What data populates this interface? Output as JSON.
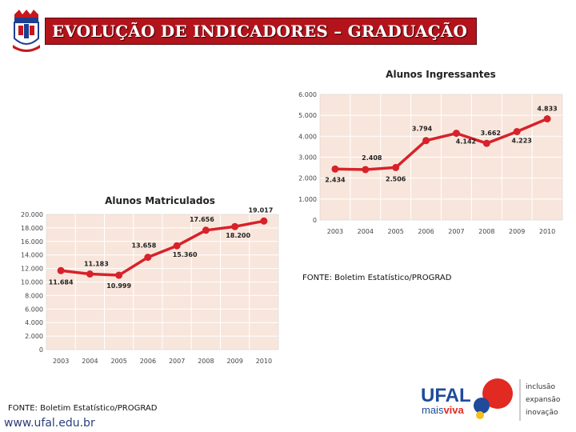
{
  "header": {
    "title": "EVOLUÇÃO DE INDICADORES – GRADUAÇÃO"
  },
  "chart_data": [
    {
      "type": "line",
      "title": "Alunos  Ingressantes",
      "categories": [
        "2003",
        "2004",
        "2005",
        "2006",
        "2007",
        "2008",
        "2009",
        "2010"
      ],
      "values": [
        2434,
        2408,
        2506,
        3794,
        4142,
        3662,
        4223,
        4833
      ],
      "data_labels": [
        "2.434",
        "2.408",
        "2.506",
        "3.794",
        "4.142",
        "3.662",
        "4.223",
        "4.833"
      ],
      "y_ticks": [
        "0",
        "1.000",
        "2.000",
        "3.000",
        "4.000",
        "5.000",
        "6.000"
      ],
      "ylim": [
        0,
        6000
      ],
      "grid": true,
      "line_color": "#d7222a",
      "plot_background": "#f8e6dc"
    },
    {
      "type": "line",
      "title": "Alunos Matriculados",
      "categories": [
        "2003",
        "2004",
        "2005",
        "2006",
        "2007",
        "2008",
        "2009",
        "2010"
      ],
      "values": [
        11684,
        11183,
        10999,
        13658,
        15360,
        17656,
        18200,
        19017
      ],
      "data_labels": [
        "11.684",
        "11.183",
        "10.999",
        "13.658",
        "15.360",
        "17.656",
        "18.200",
        "19.017"
      ],
      "y_ticks": [
        "0",
        "2.000",
        "4.000",
        "6.000",
        "8.000",
        "10.000",
        "12.000",
        "14.000",
        "16.000",
        "18.000",
        "20.000"
      ],
      "ylim": [
        0,
        20000
      ],
      "grid": true,
      "line_color": "#d7222a",
      "plot_background": "#f8e6dc"
    }
  ],
  "sources": {
    "right": "FONTE: Boletim Estatístico/PROGRAD",
    "left": "FONTE: Boletim Estatístico/PROGRAD"
  },
  "footer": {
    "url": "www.ufal.edu.br"
  },
  "logo": {
    "wordmark": "UFAL",
    "tagline_mais": "mais",
    "tagline_viva": "viva",
    "words": [
      "inclusão",
      "expansão",
      "inovação"
    ],
    "colors": {
      "red": "#e02a22",
      "blue": "#1f4b9a",
      "yellow": "#f2c21a",
      "gray": "#555555"
    }
  }
}
